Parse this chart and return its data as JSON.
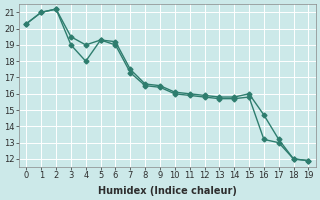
{
  "xlabel": "Humidex (Indice chaleur)",
  "line1_x": [
    0,
    1,
    2,
    3,
    4,
    5,
    6,
    7,
    8,
    9,
    10,
    11,
    12,
    13,
    14,
    15,
    16,
    17,
    18,
    19
  ],
  "line1_y": [
    20.3,
    21.0,
    21.2,
    19.0,
    18.0,
    19.3,
    19.0,
    17.3,
    16.5,
    16.4,
    16.0,
    15.9,
    15.8,
    15.7,
    15.7,
    15.8,
    13.2,
    13.0,
    12.0,
    11.9
  ],
  "line2_x": [
    0,
    1,
    2,
    3,
    4,
    5,
    6,
    7,
    8,
    9,
    10,
    11,
    12,
    13,
    14,
    15,
    16,
    17,
    18,
    19
  ],
  "line2_y": [
    20.3,
    21.0,
    21.2,
    19.5,
    19.0,
    19.3,
    19.2,
    17.5,
    16.6,
    16.5,
    16.1,
    16.0,
    15.9,
    15.8,
    15.8,
    16.0,
    14.7,
    13.2,
    12.0,
    11.9
  ],
  "color": "#2e7d6e",
  "bg_color": "#cce9e9",
  "grid_color": "#b8d9d9",
  "ylim": [
    11.5,
    21.5
  ],
  "xlim": [
    -0.5,
    19.5
  ],
  "yticks": [
    12,
    13,
    14,
    15,
    16,
    17,
    18,
    19,
    20,
    21
  ],
  "xticks": [
    0,
    1,
    2,
    3,
    4,
    5,
    6,
    7,
    8,
    9,
    10,
    11,
    12,
    13,
    14,
    15,
    16,
    17,
    18,
    19
  ],
  "marker": "D",
  "marker_size": 2.5,
  "linewidth": 1.0,
  "xlabel_fontsize": 7,
  "tick_fontsize": 6
}
